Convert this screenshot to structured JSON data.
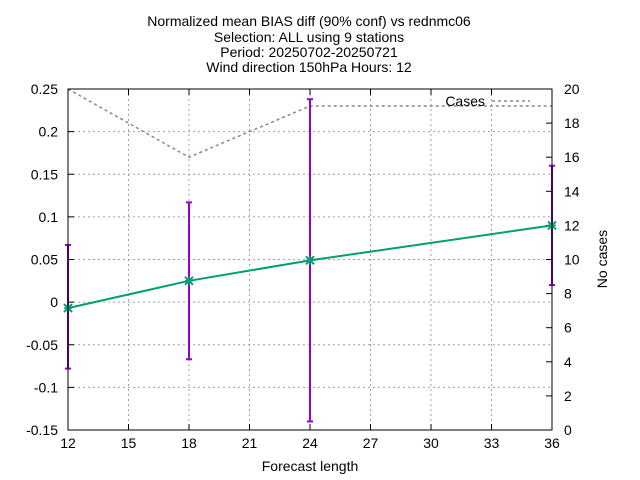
{
  "chart_data": {
    "type": "line",
    "title_lines": [
      "Normalized mean BIAS diff (90% conf) vs rednmc06",
      "Selection: ALL using     9 stations",
      "Period: 20250702-20250721",
      "Wind direction 150hPa   Hours: 12"
    ],
    "xlabel": "Forecast length",
    "ylabel_right": "No cases",
    "xlim": [
      12,
      36
    ],
    "xticks": [
      12,
      15,
      18,
      21,
      24,
      27,
      30,
      33,
      36
    ],
    "ylim": [
      -0.15,
      0.25
    ],
    "yticks": [
      "-0.15",
      "-0.1",
      "-0.05",
      "0",
      "0.05",
      "0.1",
      "0.15",
      "0.2",
      "0.25"
    ],
    "y2lim": [
      0,
      20
    ],
    "y2ticks": [
      "0",
      "2",
      "4",
      "6",
      "8",
      "10",
      "12",
      "14",
      "16",
      "18",
      "20"
    ],
    "grid": true,
    "series": [
      {
        "kind": "bias",
        "x": [
          12,
          18,
          24,
          36
        ],
        "y": [
          -0.007,
          0.025,
          0.049,
          0.09
        ],
        "err_low": [
          -0.078,
          -0.067,
          -0.14,
          0.02
        ],
        "err_high": [
          0.067,
          0.117,
          0.238,
          0.16
        ],
        "color": "#009e73",
        "errorbar_color": "#9400d3"
      },
      {
        "kind": "cases",
        "name": "Cases",
        "axis": "right",
        "x": [
          12,
          18,
          24,
          36
        ],
        "y": [
          20,
          16,
          19,
          19
        ],
        "color": "#888888",
        "dash": "dotted"
      }
    ],
    "legend_position": "top-right"
  }
}
